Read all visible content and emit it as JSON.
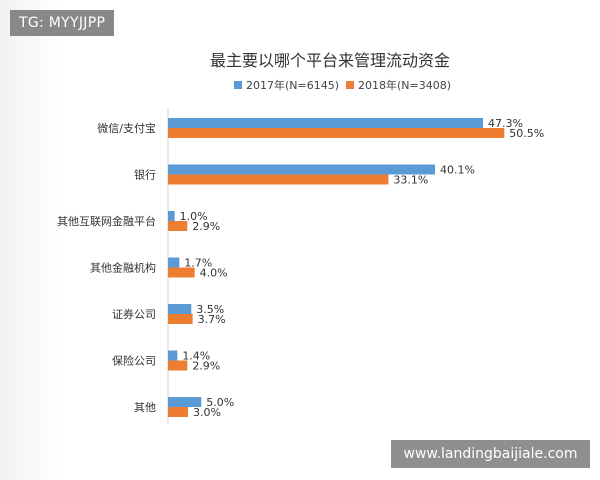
{
  "overlay": {
    "top_left_tag": "TG: MYYJJPP",
    "bottom_right_tag": "www.landingbaijiale.com"
  },
  "chart_data": {
    "type": "bar",
    "orientation": "horizontal",
    "title": "最主要以哪个平台来管理流动资金",
    "categories": [
      "微信/支付宝",
      "银行",
      "其他互联网金融平台",
      "其他金融机构",
      "证券公司",
      "保险公司",
      "其他"
    ],
    "series": [
      {
        "name": "2017年(N=6145)",
        "color": "#5b9bd5",
        "values": [
          47.3,
          40.1,
          1.0,
          1.7,
          3.5,
          1.4,
          5.0
        ]
      },
      {
        "name": "2018年(N=3408)",
        "color": "#ed7d31",
        "values": [
          50.5,
          33.1,
          2.9,
          4.0,
          3.7,
          2.9,
          3.0
        ]
      }
    ],
    "value_suffix": "%",
    "xlim": [
      0,
      55
    ],
    "legend_position": "top",
    "grid": false
  }
}
